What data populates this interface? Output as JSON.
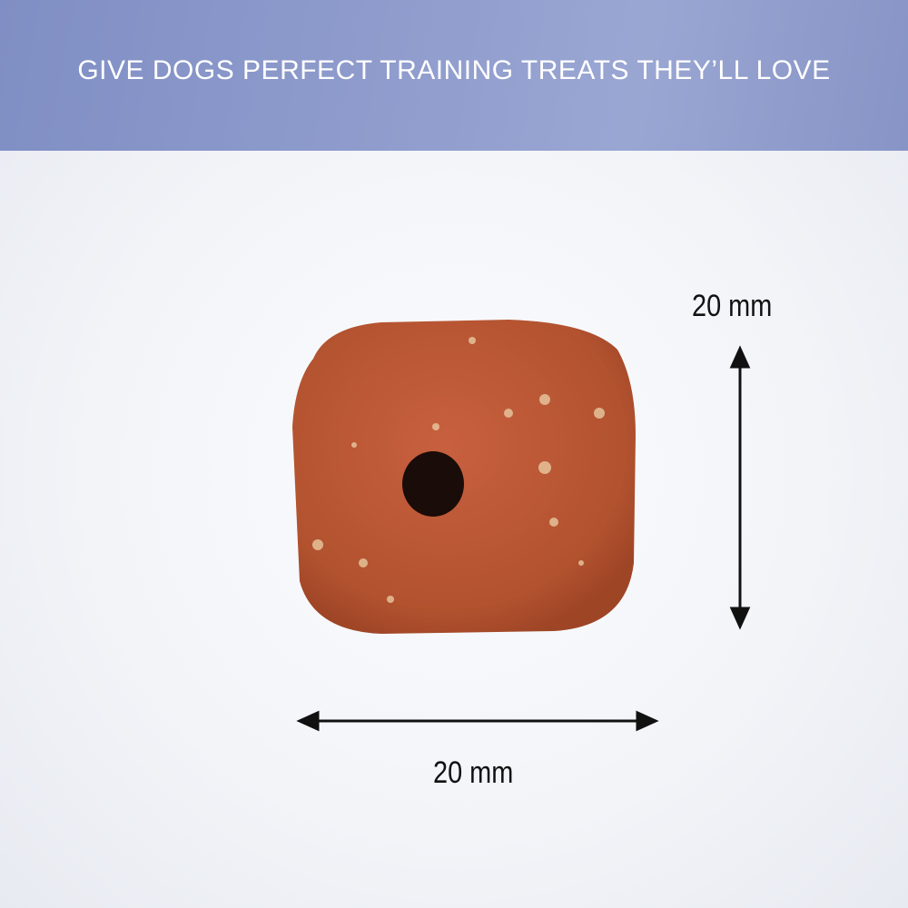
{
  "banner": {
    "headline": "GIVE DOGS PERFECT TRAINING TREATS THEY’LL LOVE"
  },
  "dimensions": {
    "height_label": "20 mm",
    "width_label": "20 mm"
  },
  "colors": {
    "banner": "#8e9bcc",
    "treat": "#b8563a",
    "background": "#f2f4f8"
  }
}
